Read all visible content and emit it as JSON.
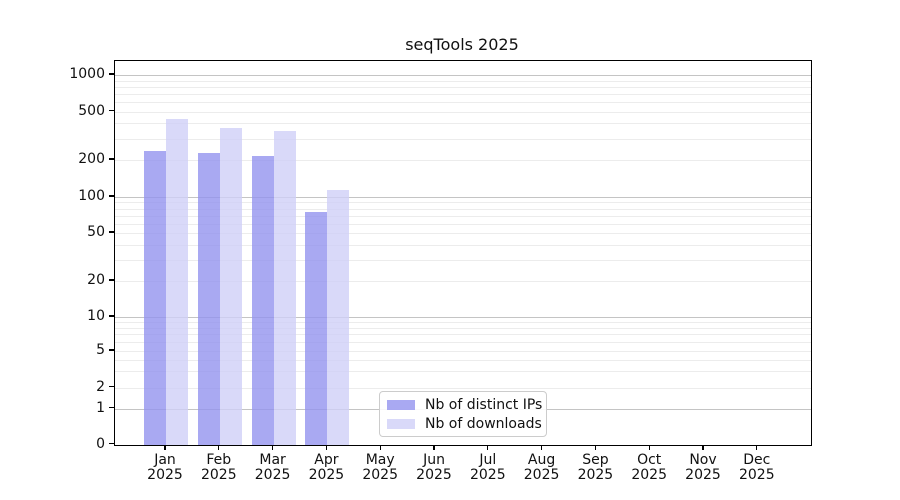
{
  "chart_data": {
    "type": "bar",
    "title": "seqTools 2025",
    "xlabel": "",
    "ylabel": "",
    "yscale": "symlog",
    "ylim": [
      0,
      1150
    ],
    "yticks": [
      0,
      1,
      2,
      5,
      10,
      20,
      50,
      100,
      200,
      500,
      1000
    ],
    "grid": "horizontal, major (powers of 10) darker + minor lighter",
    "legend_position": "lower center",
    "categories": [
      {
        "month": "Jan",
        "year": "2025"
      },
      {
        "month": "Feb",
        "year": "2025"
      },
      {
        "month": "Mar",
        "year": "2025"
      },
      {
        "month": "Apr",
        "year": "2025"
      },
      {
        "month": "May",
        "year": "2025"
      },
      {
        "month": "Jun",
        "year": "2025"
      },
      {
        "month": "Jul",
        "year": "2025"
      },
      {
        "month": "Aug",
        "year": "2025"
      },
      {
        "month": "Sep",
        "year": "2025"
      },
      {
        "month": "Oct",
        "year": "2025"
      },
      {
        "month": "Nov",
        "year": "2025"
      },
      {
        "month": "Dec",
        "year": "2025"
      }
    ],
    "series": [
      {
        "name": "Nb of distinct IPs",
        "color": "#9494ef",
        "values": [
          235,
          227,
          215,
          75,
          null,
          null,
          null,
          null,
          null,
          null,
          null,
          null
        ]
      },
      {
        "name": "Nb of downloads",
        "color": "#d0d0f7",
        "values": [
          430,
          365,
          348,
          115,
          null,
          null,
          null,
          null,
          null,
          null,
          null,
          null
        ]
      }
    ]
  }
}
